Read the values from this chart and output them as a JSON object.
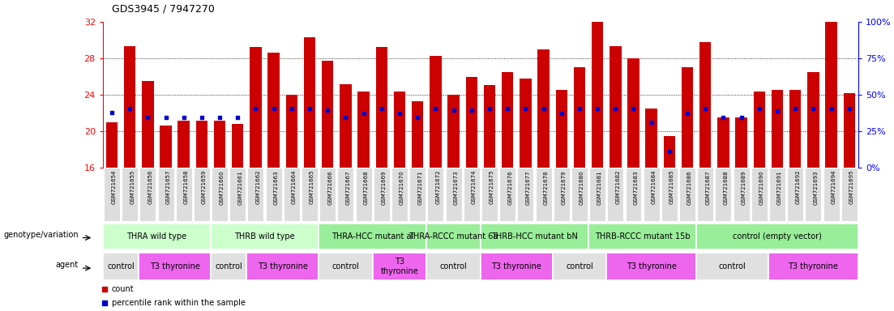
{
  "title": "GDS3945 / 7947270",
  "samples": [
    "GSM721654",
    "GSM721655",
    "GSM721656",
    "GSM721657",
    "GSM721658",
    "GSM721659",
    "GSM721660",
    "GSM721661",
    "GSM721662",
    "GSM721663",
    "GSM721664",
    "GSM721665",
    "GSM721666",
    "GSM721667",
    "GSM721668",
    "GSM721669",
    "GSM721670",
    "GSM721671",
    "GSM721672",
    "GSM721673",
    "GSM721674",
    "GSM721675",
    "GSM721676",
    "GSM721677",
    "GSM721678",
    "GSM721679",
    "GSM721680",
    "GSM721681",
    "GSM721682",
    "GSM721683",
    "GSM721684",
    "GSM721685",
    "GSM721686",
    "GSM721687",
    "GSM721688",
    "GSM721689",
    "GSM721690",
    "GSM721691",
    "GSM721692",
    "GSM721693",
    "GSM721694",
    "GSM721695"
  ],
  "counts": [
    21.0,
    29.3,
    25.5,
    20.6,
    21.2,
    21.2,
    21.2,
    20.8,
    29.2,
    28.6,
    24.0,
    30.3,
    27.7,
    25.2,
    24.4,
    29.2,
    24.4,
    23.3,
    28.3,
    24.0,
    26.0,
    25.1,
    26.5,
    25.8,
    29.0,
    24.5,
    27.0,
    32.0,
    29.3,
    28.0,
    22.5,
    19.5,
    27.0,
    29.8,
    21.5,
    21.5,
    24.4,
    24.5,
    24.5,
    26.5,
    32.0,
    24.2
  ],
  "percentile_vals": [
    22.1,
    22.5,
    21.5,
    21.5,
    21.5,
    21.5,
    21.5,
    21.5,
    22.5,
    22.5,
    22.5,
    22.5,
    22.3,
    21.5,
    22.0,
    22.5,
    22.0,
    21.5,
    22.5,
    22.3,
    22.3,
    22.5,
    22.5,
    22.5,
    22.5,
    22.0,
    22.5,
    22.5,
    22.5,
    22.5,
    21.0,
    17.8,
    22.0,
    22.5,
    21.5,
    21.5,
    22.5,
    22.2,
    22.5,
    22.5,
    22.5,
    22.5
  ],
  "ylim": [
    16,
    32
  ],
  "yticks": [
    16,
    20,
    24,
    28,
    32
  ],
  "y2ticks_pos": [
    16,
    20,
    24,
    28,
    32
  ],
  "y2labels": [
    "0%",
    "25%",
    "50%",
    "75%",
    "100%"
  ],
  "bar_color": "#cc0000",
  "dot_color": "#0000cc",
  "genotype_groups": [
    {
      "label": "THRA wild type",
      "start": 0,
      "end": 5,
      "color": "#ccffcc"
    },
    {
      "label": "THRB wild type",
      "start": 6,
      "end": 11,
      "color": "#ccffcc"
    },
    {
      "label": "THRA-HCC mutant al",
      "start": 12,
      "end": 17,
      "color": "#99ee99"
    },
    {
      "label": "THRA-RCCC mutant 6a",
      "start": 18,
      "end": 20,
      "color": "#99ee99"
    },
    {
      "label": "THRB-HCC mutant bN",
      "start": 21,
      "end": 26,
      "color": "#99ee99"
    },
    {
      "label": "THRB-RCCC mutant 15b",
      "start": 27,
      "end": 32,
      "color": "#99ee99"
    },
    {
      "label": "control (empty vector)",
      "start": 33,
      "end": 41,
      "color": "#99ee99"
    }
  ],
  "agent_groups": [
    {
      "label": "control",
      "start": 0,
      "end": 1,
      "color": "#e0e0e0"
    },
    {
      "label": "T3 thyronine",
      "start": 2,
      "end": 5,
      "color": "#ee66ee"
    },
    {
      "label": "control",
      "start": 6,
      "end": 7,
      "color": "#e0e0e0"
    },
    {
      "label": "T3 thyronine",
      "start": 8,
      "end": 11,
      "color": "#ee66ee"
    },
    {
      "label": "control",
      "start": 12,
      "end": 14,
      "color": "#e0e0e0"
    },
    {
      "label": "T3\nthyronine",
      "start": 15,
      "end": 17,
      "color": "#ee66ee"
    },
    {
      "label": "control",
      "start": 18,
      "end": 20,
      "color": "#e0e0e0"
    },
    {
      "label": "T3 thyronine",
      "start": 21,
      "end": 24,
      "color": "#ee66ee"
    },
    {
      "label": "control",
      "start": 25,
      "end": 27,
      "color": "#e0e0e0"
    },
    {
      "label": "T3 thyronine",
      "start": 28,
      "end": 32,
      "color": "#ee66ee"
    },
    {
      "label": "control",
      "start": 33,
      "end": 36,
      "color": "#e0e0e0"
    },
    {
      "label": "T3 thyronine",
      "start": 37,
      "end": 41,
      "color": "#ee66ee"
    }
  ],
  "bg_color": "#ffffff",
  "tick_bg_color": "#dddddd"
}
